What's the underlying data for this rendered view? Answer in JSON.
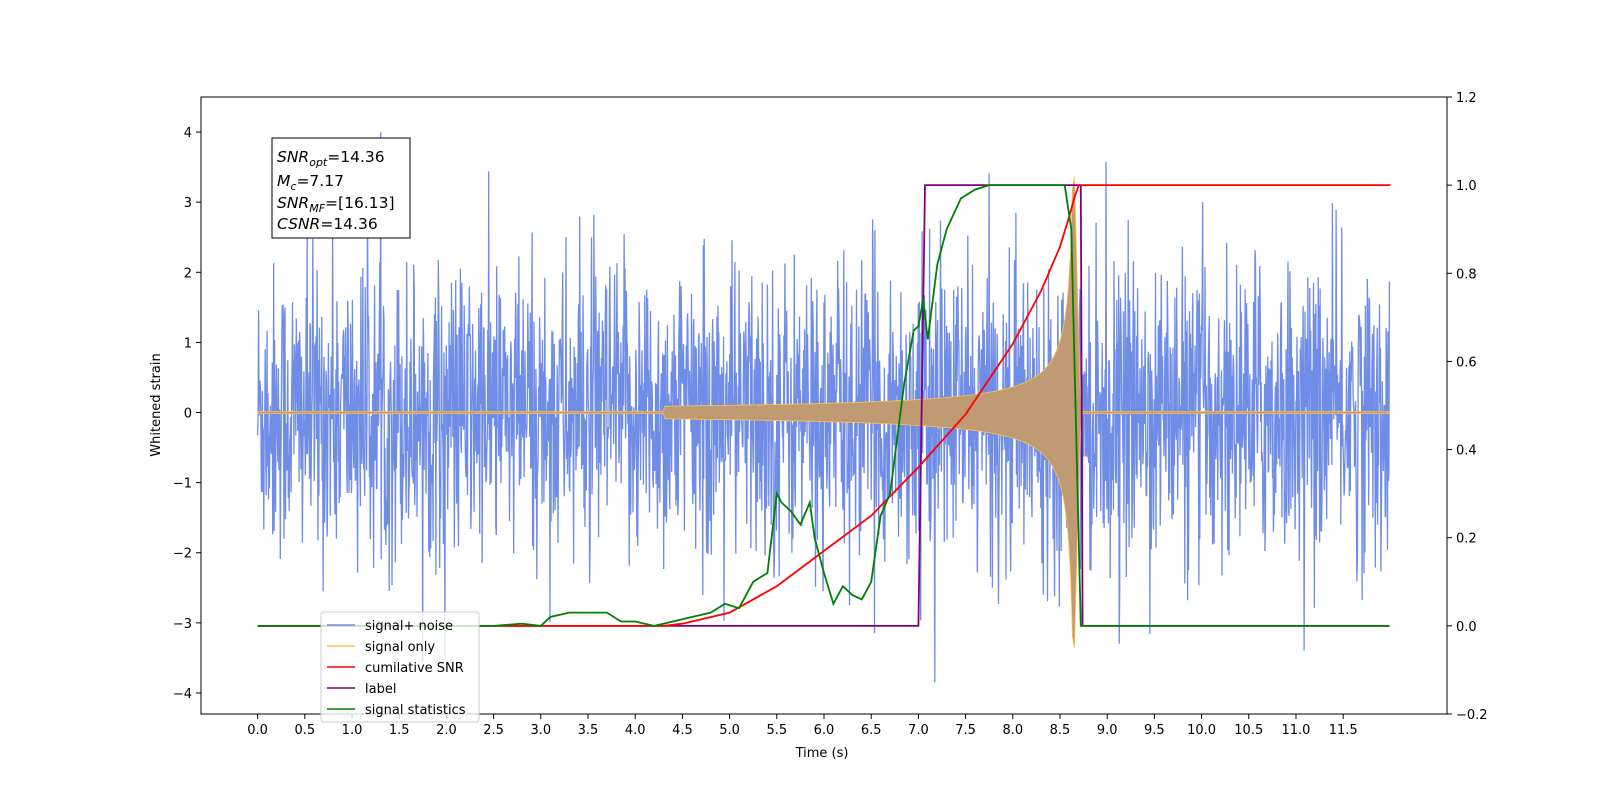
{
  "chart_data": {
    "type": "line",
    "xlabel": "Time (s)",
    "ylabel": "Whitened strain",
    "xlim": [
      -0.6,
      12.6
    ],
    "ylim": [
      -4.3,
      4.5
    ],
    "y2lim": [
      -0.2,
      1.2
    ],
    "x_ticks": [
      "0.0",
      "0.5",
      "1.0",
      "1.5",
      "2.0",
      "2.5",
      "3.0",
      "3.5",
      "4.0",
      "4.5",
      "5.0",
      "5.5",
      "6.0",
      "6.5",
      "7.0",
      "7.5",
      "8.0",
      "8.5",
      "9.0",
      "9.5",
      "10.0",
      "10.5",
      "11.0",
      "11.5"
    ],
    "y_ticks": [
      "4",
      "3",
      "2",
      "1",
      "0",
      "−1",
      "−2",
      "−3",
      "−4"
    ],
    "y2_ticks": [
      "1.2",
      "1.0",
      "0.8",
      "0.6",
      "0.4",
      "0.2",
      "0.0",
      "−0.2"
    ],
    "legend_position": "lower-left",
    "annotation": {
      "snr_opt": {
        "sym": "SNR",
        "sub": "opt",
        "rest": "=14.36"
      },
      "mc": {
        "sym": "M",
        "sub": "c",
        "rest": "=7.17"
      },
      "snr_mf": {
        "sym": "SNR",
        "sub": "MF",
        "rest": "=[16.13]"
      },
      "csnr": {
        "sym": "CSNR",
        "sub": "",
        "rest": "=14.36"
      }
    },
    "series": [
      {
        "name": "signal+ noise",
        "color": "#6f8ce6",
        "axis": "left",
        "description_values": {
          "x_range": [
            0.0,
            11.99
          ],
          "amplitude_typical": 2.4,
          "peak_max": 4.12,
          "peak_min": -3.85
        }
      },
      {
        "name": "signal only",
        "color": "#ffc04d",
        "axis": "left",
        "chirp": {
          "start": 4.3,
          "merger": 8.65,
          "ringdown_end": 8.72,
          "peak_amplitude": 3.5
        }
      },
      {
        "name": "cumilative SNR",
        "color": "#ff0000",
        "axis": "right",
        "x": [
          0.0,
          4.3,
          4.5,
          5.0,
          5.5,
          6.0,
          6.5,
          7.0,
          7.5,
          8.0,
          8.3,
          8.5,
          8.6,
          8.65,
          8.7,
          12.0
        ],
        "values": [
          0.0,
          0.0,
          0.005,
          0.03,
          0.09,
          0.17,
          0.25,
          0.36,
          0.48,
          0.64,
          0.76,
          0.86,
          0.93,
          0.97,
          1.0,
          1.0
        ]
      },
      {
        "name": "label",
        "color": "#800080",
        "axis": "right",
        "x": [
          0.0,
          7.0,
          7.07,
          8.72,
          8.74,
          11.99
        ],
        "values": [
          0.0,
          0.0,
          1.0,
          1.0,
          0.0,
          0.0
        ]
      },
      {
        "name": "signal statistics",
        "color": "#008000",
        "axis": "right",
        "x": [
          0.0,
          2.5,
          2.8,
          3.0,
          3.1,
          3.3,
          3.7,
          3.85,
          4.0,
          4.2,
          4.4,
          4.6,
          4.8,
          4.95,
          5.1,
          5.25,
          5.4,
          5.5,
          5.55,
          5.65,
          5.75,
          5.85,
          5.9,
          6.0,
          6.1,
          6.2,
          6.3,
          6.4,
          6.5,
          6.6,
          6.7,
          6.85,
          6.95,
          7.0,
          7.05,
          7.1,
          7.2,
          7.3,
          7.45,
          7.6,
          7.75,
          7.9,
          8.2,
          8.55,
          8.62,
          8.72,
          8.75,
          11.99
        ],
        "values": [
          0.0,
          0.0,
          0.005,
          0.0,
          0.02,
          0.03,
          0.03,
          0.01,
          0.01,
          0.0,
          0.01,
          0.02,
          0.03,
          0.05,
          0.04,
          0.1,
          0.12,
          0.3,
          0.28,
          0.26,
          0.23,
          0.28,
          0.2,
          0.12,
          0.05,
          0.09,
          0.07,
          0.06,
          0.1,
          0.25,
          0.3,
          0.55,
          0.67,
          0.68,
          0.74,
          0.65,
          0.82,
          0.9,
          0.97,
          0.99,
          1.0,
          1.0,
          1.0,
          1.0,
          0.9,
          0.0,
          0.0,
          0.0
        ]
      }
    ]
  }
}
